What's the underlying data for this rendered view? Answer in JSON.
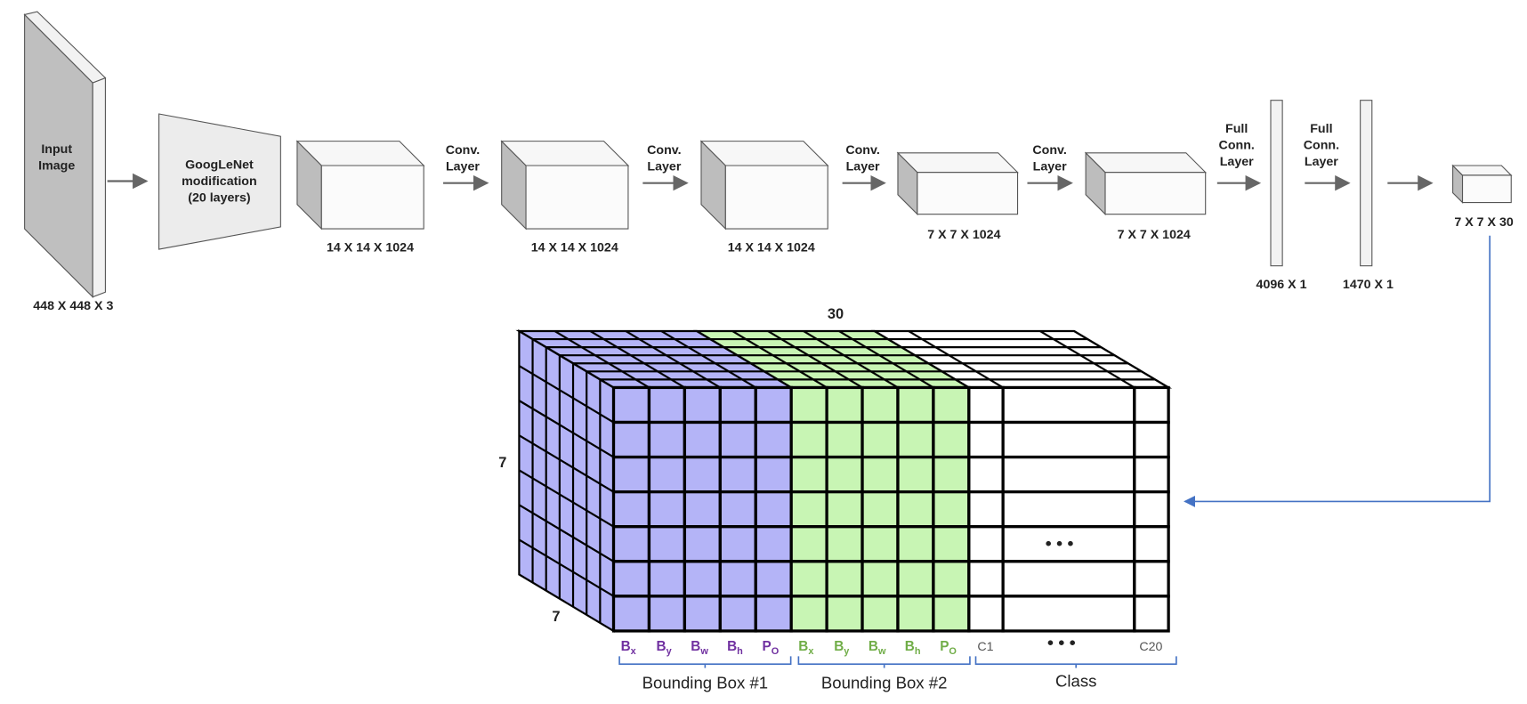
{
  "pipeline": {
    "input": {
      "label": [
        "Input",
        "Image"
      ],
      "size": "448 X 448 X 3"
    },
    "backbone": {
      "label": [
        "GoogLeNet",
        "modification",
        "(20 layers)"
      ]
    },
    "blocks": [
      {
        "size": "14 X 14 X 1024"
      },
      {
        "size": "14 X 14 X 1024"
      },
      {
        "size": "14 X 14 X 1024"
      },
      {
        "size": "7 X 7 X 1024"
      },
      {
        "size": "7 X 7 X 1024"
      }
    ],
    "conv_labels": [
      [
        "Conv.",
        "Layer"
      ],
      [
        "Conv.",
        "Layer"
      ],
      [
        "Conv.",
        "Layer"
      ],
      [
        "Conv.",
        "Layer"
      ]
    ],
    "fc": [
      {
        "label": [
          "Full",
          "Conn.",
          "Layer"
        ],
        "size": "4096 X 1"
      },
      {
        "label": [
          "Full",
          "Conn.",
          "Layer"
        ],
        "size": "1470 X 1"
      }
    ],
    "output": {
      "size": "7 X 7 X 30"
    }
  },
  "tensor": {
    "depth_label": "30",
    "height_label": "7",
    "width_label": "7",
    "grid_ellipsis": "• • •",
    "box1": {
      "caption": "Bounding Box #1",
      "params": [
        {
          "base": "B",
          "sub": "x"
        },
        {
          "base": "B",
          "sub": "y"
        },
        {
          "base": "B",
          "sub": "w"
        },
        {
          "base": "B",
          "sub": "h"
        },
        {
          "base": "P",
          "sub": "O"
        }
      ]
    },
    "box2": {
      "caption": "Bounding Box #2",
      "params": [
        {
          "base": "B",
          "sub": "x"
        },
        {
          "base": "B",
          "sub": "y"
        },
        {
          "base": "B",
          "sub": "w"
        },
        {
          "base": "B",
          "sub": "h"
        },
        {
          "base": "P",
          "sub": "O"
        }
      ]
    },
    "class": {
      "first": "C1",
      "ellipsis": "• • •",
      "last": "C20",
      "caption": "Class"
    }
  }
}
